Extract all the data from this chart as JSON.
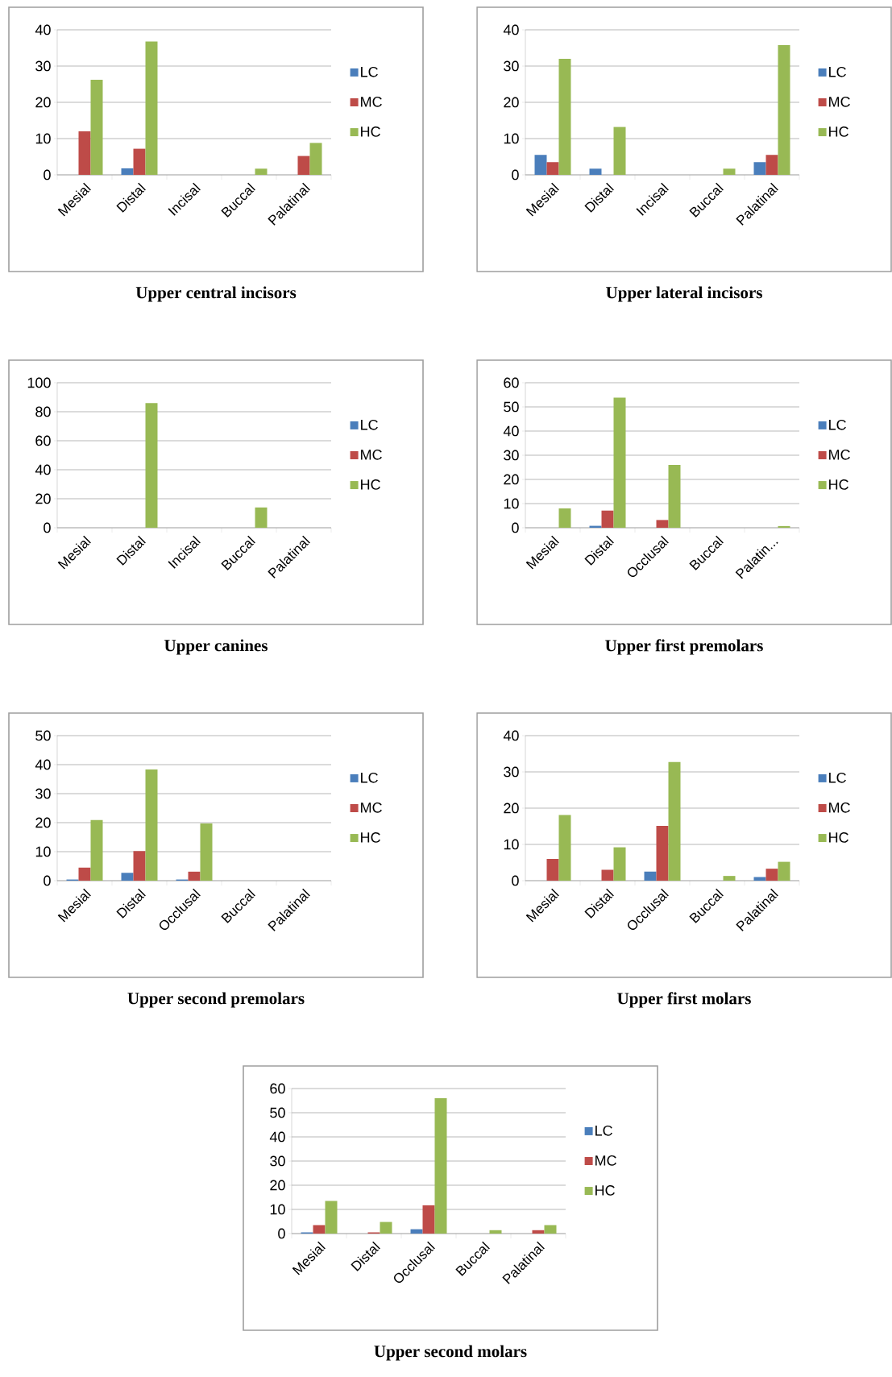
{
  "chart_data": [
    {
      "type": "bar",
      "title": "Upper central incisors",
      "categories": [
        "Mesial",
        "Distal",
        "Incisal",
        "Buccal",
        "Palatinal"
      ],
      "ylim": [
        0,
        40
      ],
      "yticks": [
        0,
        10,
        20,
        30,
        40
      ],
      "grid": "y",
      "legend": "right",
      "series": [
        {
          "name": "LC",
          "color": "#4a7ebb",
          "values": [
            0,
            1.8,
            0,
            0,
            0
          ]
        },
        {
          "name": "MC",
          "color": "#be4b48",
          "values": [
            12,
            7.2,
            0,
            0,
            5.2
          ]
        },
        {
          "name": "HC",
          "color": "#98b954",
          "values": [
            26.2,
            36.8,
            0,
            1.7,
            8.8
          ]
        }
      ]
    },
    {
      "type": "bar",
      "title": "Upper lateral incisors",
      "categories": [
        "Mesial",
        "Distal",
        "Incisal",
        "Buccal",
        "Palatinal"
      ],
      "ylim": [
        0,
        40
      ],
      "yticks": [
        0,
        10,
        20,
        30,
        40
      ],
      "grid": "y",
      "legend": "right",
      "series": [
        {
          "name": "LC",
          "color": "#4a7ebb",
          "values": [
            5.5,
            1.7,
            0,
            0,
            3.5
          ]
        },
        {
          "name": "MC",
          "color": "#be4b48",
          "values": [
            3.5,
            0,
            0,
            0,
            5.5
          ]
        },
        {
          "name": "HC",
          "color": "#98b954",
          "values": [
            32,
            13.2,
            0,
            1.7,
            35.8
          ]
        }
      ]
    },
    {
      "type": "bar",
      "title": "Upper canines",
      "categories": [
        "Mesial",
        "Distal",
        "Incisal",
        "Buccal",
        "Palatinal"
      ],
      "ylim": [
        0,
        100
      ],
      "yticks": [
        0,
        20,
        40,
        60,
        80,
        100
      ],
      "grid": "y",
      "legend": "right",
      "series": [
        {
          "name": "LC",
          "color": "#4a7ebb",
          "values": [
            0,
            0,
            0,
            0,
            0
          ]
        },
        {
          "name": "MC",
          "color": "#be4b48",
          "values": [
            0,
            0,
            0,
            0,
            0
          ]
        },
        {
          "name": "HC",
          "color": "#98b954",
          "values": [
            0,
            86,
            0,
            14,
            0
          ]
        }
      ]
    },
    {
      "type": "bar",
      "title": "Upper first premolars",
      "categories": [
        "Mesial",
        "Distal",
        "Occlusal",
        "Buccal",
        "Palatin..."
      ],
      "ylim": [
        0,
        60
      ],
      "yticks": [
        0,
        10,
        20,
        30,
        40,
        50,
        60
      ],
      "grid": "y",
      "legend": "right",
      "series": [
        {
          "name": "LC",
          "color": "#4a7ebb",
          "values": [
            0,
            0.8,
            0,
            0,
            0
          ]
        },
        {
          "name": "MC",
          "color": "#be4b48",
          "values": [
            0,
            7.1,
            3.2,
            0,
            0
          ]
        },
        {
          "name": "HC",
          "color": "#98b954",
          "values": [
            8,
            53.8,
            26,
            0,
            0.7
          ]
        }
      ]
    },
    {
      "type": "bar",
      "title": "Upper second premolars",
      "categories": [
        "Mesial",
        "Distal",
        "Occlusal",
        "Buccal",
        "Palatinal"
      ],
      "ylim": [
        0,
        50
      ],
      "yticks": [
        0,
        10,
        20,
        30,
        40,
        50
      ],
      "grid": "y",
      "legend": "right",
      "series": [
        {
          "name": "LC",
          "color": "#4a7ebb",
          "values": [
            0.4,
            2.7,
            0.4,
            0,
            0
          ]
        },
        {
          "name": "MC",
          "color": "#be4b48",
          "values": [
            4.5,
            10.2,
            3.1,
            0,
            0
          ]
        },
        {
          "name": "HC",
          "color": "#98b954",
          "values": [
            20.9,
            38.3,
            19.7,
            0,
            0
          ]
        }
      ]
    },
    {
      "type": "bar",
      "title": "Upper first molars",
      "categories": [
        "Mesial",
        "Distal",
        "Occlusal",
        "Buccal",
        "Palatinal"
      ],
      "ylim": [
        0,
        40
      ],
      "yticks": [
        0,
        10,
        20,
        30,
        40
      ],
      "grid": "y",
      "legend": "right",
      "series": [
        {
          "name": "LC",
          "color": "#4a7ebb",
          "values": [
            0,
            0,
            2.5,
            0,
            1
          ]
        },
        {
          "name": "MC",
          "color": "#be4b48",
          "values": [
            6,
            3,
            15.1,
            0,
            3.3
          ]
        },
        {
          "name": "HC",
          "color": "#98b954",
          "values": [
            18.1,
            9.2,
            32.7,
            1.3,
            5.2
          ]
        }
      ]
    },
    {
      "type": "bar",
      "title": "Upper second molars",
      "categories": [
        "Mesial",
        "Distal",
        "Occlusal",
        "Buccal",
        "Palatinal"
      ],
      "ylim": [
        0,
        60
      ],
      "yticks": [
        0,
        10,
        20,
        30,
        40,
        50,
        60
      ],
      "grid": "y",
      "legend": "right",
      "series": [
        {
          "name": "LC",
          "color": "#4a7ebb",
          "values": [
            0.5,
            0,
            1.8,
            0,
            0
          ]
        },
        {
          "name": "MC",
          "color": "#be4b48",
          "values": [
            3.5,
            0.5,
            11.7,
            0,
            1.4
          ]
        },
        {
          "name": "HC",
          "color": "#98b954",
          "values": [
            13.5,
            4.8,
            56,
            1.4,
            3.5
          ]
        }
      ]
    }
  ]
}
